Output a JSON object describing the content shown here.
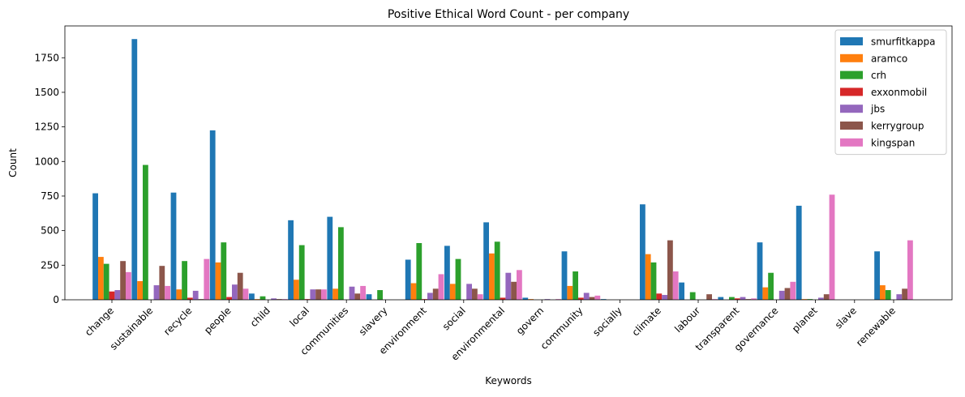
{
  "chart_data": {
    "type": "bar",
    "title": "Positive Ethical Word Count - per company",
    "xlabel": "Keywords",
    "ylabel": "Count",
    "ylim": [
      0,
      1980
    ],
    "yticks": [
      0,
      250,
      500,
      750,
      1000,
      1250,
      1500,
      1750
    ],
    "grid": false,
    "legend_position": "top-right",
    "categories": [
      "change",
      "sustainable",
      "recycle",
      "people",
      "child",
      "local",
      "communities",
      "slavery",
      "environment",
      "social",
      "environmental",
      "govern",
      "community",
      "socially",
      "climate",
      "labour",
      "transparent",
      "governance",
      "planet",
      "slave",
      "renewable"
    ],
    "series": [
      {
        "name": "smurfitkappa",
        "color": "#1f77b4",
        "values": [
          770,
          1885,
          775,
          1225,
          45,
          575,
          600,
          40,
          290,
          390,
          560,
          15,
          350,
          5,
          690,
          125,
          20,
          415,
          680,
          0,
          350
        ]
      },
      {
        "name": "aramco",
        "color": "#ff7f0e",
        "values": [
          310,
          135,
          75,
          270,
          5,
          145,
          80,
          0,
          120,
          115,
          335,
          5,
          100,
          0,
          330,
          0,
          0,
          90,
          5,
          0,
          105
        ]
      },
      {
        "name": "crh",
        "color": "#2ca02c",
        "values": [
          260,
          975,
          280,
          415,
          25,
          395,
          525,
          70,
          410,
          295,
          420,
          0,
          205,
          0,
          270,
          55,
          20,
          195,
          5,
          0,
          70
        ]
      },
      {
        "name": "exxonmobil",
        "color": "#d62728",
        "values": [
          60,
          0,
          15,
          20,
          0,
          5,
          0,
          0,
          5,
          0,
          15,
          0,
          15,
          0,
          45,
          0,
          10,
          0,
          0,
          0,
          0
        ]
      },
      {
        "name": "jbs",
        "color": "#9467bd",
        "values": [
          70,
          105,
          65,
          110,
          10,
          75,
          95,
          0,
          50,
          115,
          195,
          5,
          50,
          0,
          35,
          0,
          20,
          65,
          15,
          0,
          40
        ]
      },
      {
        "name": "kerrygroup",
        "color": "#8c564b",
        "values": [
          280,
          245,
          5,
          195,
          5,
          75,
          45,
          0,
          80,
          80,
          130,
          0,
          20,
          0,
          430,
          40,
          5,
          85,
          40,
          0,
          80
        ]
      },
      {
        "name": "kingspan",
        "color": "#e377c2",
        "values": [
          200,
          100,
          295,
          80,
          5,
          75,
          100,
          0,
          185,
          40,
          215,
          5,
          30,
          0,
          205,
          5,
          10,
          130,
          760,
          0,
          430
        ]
      }
    ]
  }
}
